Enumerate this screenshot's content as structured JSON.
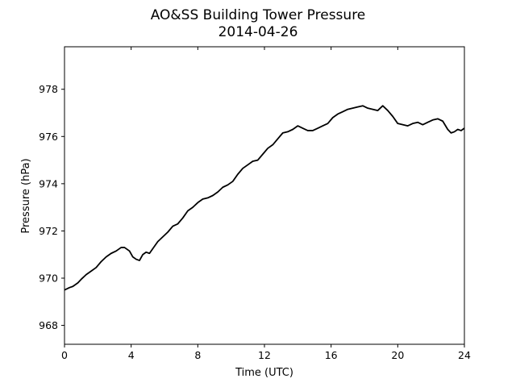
{
  "chart_data": {
    "type": "line",
    "title": "AO&SS Building Tower Pressure",
    "subtitle": "2014-04-26",
    "xlabel": "Time (UTC)",
    "ylabel": "Pressure (hPa)",
    "xlim": [
      0,
      24
    ],
    "ylim": [
      967.2,
      979.8
    ],
    "xticks": [
      0,
      4,
      8,
      12,
      16,
      20,
      24
    ],
    "yticks": [
      968,
      970,
      972,
      974,
      976,
      978
    ],
    "grid": false,
    "line_color": "#000000",
    "series": [
      {
        "x": [
          0.0,
          0.3,
          0.5,
          0.8,
          1.0,
          1.3,
          1.6,
          1.9,
          2.2,
          2.5,
          2.8,
          3.1,
          3.4,
          3.6,
          3.9,
          4.1,
          4.3,
          4.5,
          4.7,
          4.9,
          5.1,
          5.3,
          5.6,
          5.9,
          6.2,
          6.5,
          6.8,
          7.1,
          7.4,
          7.7,
          8.0,
          8.3,
          8.6,
          8.9,
          9.2,
          9.5,
          9.8,
          10.1,
          10.4,
          10.7,
          11.0,
          11.3,
          11.6,
          11.9,
          12.2,
          12.5,
          12.8,
          13.1,
          13.4,
          13.7,
          14.0,
          14.3,
          14.6,
          14.9,
          15.2,
          15.5,
          15.8,
          16.1,
          16.4,
          16.7,
          17.0,
          17.3,
          17.6,
          17.9,
          18.2,
          18.5,
          18.8,
          19.1,
          19.4,
          19.7,
          20.0,
          20.3,
          20.6,
          20.9,
          21.2,
          21.5,
          21.8,
          22.1,
          22.4,
          22.7,
          23.0,
          23.2,
          23.4,
          23.6,
          23.8,
          24.0
        ],
        "y": [
          969.5,
          969.6,
          969.65,
          969.8,
          969.95,
          970.15,
          970.3,
          970.45,
          970.7,
          970.9,
          971.05,
          971.15,
          971.3,
          971.3,
          971.15,
          970.9,
          970.8,
          970.75,
          971.0,
          971.1,
          971.05,
          971.25,
          971.55,
          971.75,
          971.95,
          972.2,
          972.3,
          972.55,
          972.85,
          973.0,
          973.2,
          973.35,
          973.4,
          973.5,
          973.65,
          973.85,
          973.95,
          974.1,
          974.4,
          974.65,
          974.8,
          974.95,
          975.0,
          975.25,
          975.5,
          975.65,
          975.9,
          976.15,
          976.2,
          976.3,
          976.45,
          976.35,
          976.25,
          976.25,
          976.35,
          976.45,
          976.55,
          976.8,
          976.95,
          977.05,
          977.15,
          977.2,
          977.25,
          977.3,
          977.2,
          977.15,
          977.1,
          977.3,
          977.1,
          976.85,
          976.55,
          976.5,
          976.45,
          976.55,
          976.6,
          976.5,
          976.6,
          976.7,
          976.75,
          976.65,
          976.3,
          976.15,
          976.2,
          976.3,
          976.25,
          976.35
        ]
      }
    ]
  }
}
